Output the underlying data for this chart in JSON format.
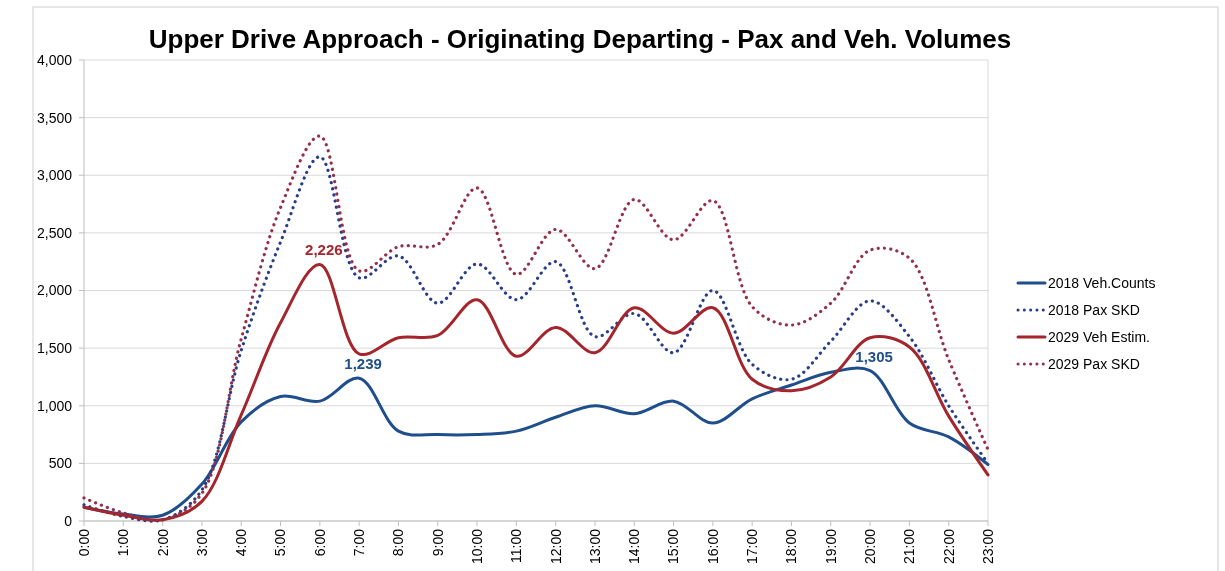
{
  "chart_data": {
    "type": "line",
    "title": "Upper Drive Approach - Originating Departing -  Pax and Veh. Volumes",
    "categories": [
      "0:00",
      "1:00",
      "2:00",
      "3:00",
      "4:00",
      "5:00",
      "6:00",
      "7:00",
      "8:00",
      "9:00",
      "10:00",
      "11:00",
      "12:00",
      "13:00",
      "14:00",
      "15:00",
      "16:00",
      "17:00",
      "18:00",
      "19:00",
      "20:00",
      "21:00",
      "22:00",
      "23:00"
    ],
    "series": [
      {
        "name": "2018 Veh.Counts",
        "color": "#1f4e8c",
        "line_style": "solid",
        "values": [
          120,
          60,
          50,
          320,
          860,
          1080,
          1040,
          1239,
          780,
          750,
          750,
          780,
          900,
          1000,
          930,
          1040,
          850,
          1060,
          1180,
          1290,
          1305,
          850,
          730,
          490
        ],
        "value_labels": [
          null,
          null,
          null,
          null,
          null,
          null,
          null,
          "1,239",
          null,
          null,
          null,
          null,
          null,
          null,
          null,
          null,
          null,
          null,
          null,
          null,
          "1,305",
          null,
          null,
          null
        ]
      },
      {
        "name": "2018 Pax SKD",
        "color": "#283e8a",
        "line_style": "dotted",
        "values": [
          140,
          40,
          10,
          270,
          1480,
          2420,
          3160,
          2110,
          2300,
          1890,
          2230,
          1920,
          2250,
          1600,
          1800,
          1460,
          2000,
          1360,
          1230,
          1560,
          1910,
          1600,
          1000,
          500
        ]
      },
      {
        "name": "2029 Veh Estim.",
        "color": "#a4262c",
        "line_style": "solid",
        "values": [
          120,
          50,
          10,
          170,
          920,
          1720,
          2226,
          1450,
          1590,
          1610,
          1920,
          1430,
          1680,
          1460,
          1850,
          1630,
          1850,
          1230,
          1130,
          1250,
          1590,
          1510,
          910,
          400
        ],
        "value_labels": [
          null,
          null,
          null,
          null,
          null,
          null,
          "2,226",
          null,
          null,
          null,
          null,
          null,
          null,
          null,
          null,
          null,
          null,
          null,
          null,
          null,
          null,
          null,
          null,
          null
        ]
      },
      {
        "name": "2029 Pax SKD",
        "color": "#93304a",
        "line_style": "dotted",
        "values": [
          200,
          70,
          10,
          240,
          1580,
          2720,
          3340,
          2170,
          2380,
          2400,
          2890,
          2140,
          2530,
          2190,
          2790,
          2440,
          2780,
          1860,
          1700,
          1890,
          2350,
          2280,
          1400,
          620
        ]
      }
    ],
    "ylim": [
      0,
      4000
    ],
    "yticks": [
      0,
      500,
      {
        "value": 1000,
        "label": "1,000"
      },
      {
        "value": 1500,
        "label": "1,500"
      },
      {
        "value": 2000,
        "label": "2,000"
      },
      {
        "value": 2500,
        "label": "2,500"
      },
      {
        "value": 3000,
        "label": "3,000"
      },
      {
        "value": 3500,
        "label": "3,500"
      },
      {
        "value": 4000,
        "label": "4,000"
      }
    ],
    "grid": "y",
    "legend": "right"
  }
}
